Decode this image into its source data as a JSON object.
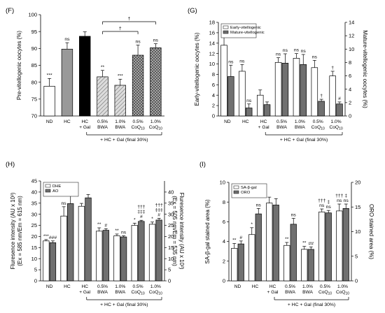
{
  "colors": {
    "white": "#ffffff",
    "gray": "#999999",
    "black": "#000000",
    "dark": "#707070",
    "hatch": "#c8c8c8",
    "ink": "#000000"
  },
  "chart_data": [
    {
      "panel": "(F)",
      "type": "bar",
      "categories": [
        "ND",
        "HC",
        "HC\n+ Gal",
        "0.5%\nBWA",
        "1.0%\nBWA",
        "0.5%\nCoQ10",
        "1.0%\nCoQ10"
      ],
      "ylabel": "Pre-vitellogenic oocytes (%)",
      "ylim": [
        70,
        100
      ],
      "yticks": [
        70,
        75,
        80,
        85,
        90,
        95,
        100
      ],
      "footnote": "+ HC + Gal (final 30%)",
      "series": [
        {
          "values": [
            78.8,
            89.8,
            93.6,
            81.6,
            79.1,
            88.0,
            90.2
          ],
          "errors": [
            2.3,
            1.9,
            1.3,
            1.9,
            1.8,
            3.0,
            1.2
          ],
          "fills": [
            "white",
            "gray",
            "black",
            "hatch",
            "hatch",
            "cross",
            "cross"
          ],
          "annotations": [
            "***",
            "ns",
            "",
            "**",
            "***",
            "ns",
            "ns"
          ]
        }
      ],
      "brackets": [
        {
          "from": 3,
          "to": 5,
          "label": "†"
        },
        {
          "from": 3,
          "to": 6,
          "label": "†"
        }
      ]
    },
    {
      "panel": "(G)",
      "type": "bar",
      "categories": [
        "ND",
        "HC",
        "HC\n+ Gal",
        "0.5%\nBWA",
        "1.0%\nBWA",
        "0.5%\nCoQ10",
        "1.0%\nCoQ10"
      ],
      "ylabel": "Early-vitellogenic oocytes (%)",
      "ylim": [
        0,
        18
      ],
      "yticks": [
        0,
        2,
        4,
        6,
        8,
        10,
        12,
        14,
        16,
        18
      ],
      "y2label": "Mature-vitellogenic oocytes (%)",
      "y2lim": [
        0,
        14
      ],
      "y2ticks": [
        0,
        2,
        4,
        6,
        8,
        10,
        12,
        14
      ],
      "legend": "top-left",
      "footnote": "+ HC + Gal (final 30%)",
      "series": [
        {
          "name": "Early-vitellogenic",
          "axis": "left",
          "fill": "white",
          "values": [
            13.6,
            8.6,
            4.0,
            10.3,
            11.1,
            9.3,
            7.7
          ],
          "errors": [
            1.7,
            1.3,
            1.0,
            0.9,
            0.9,
            1.4,
            0.9
          ],
          "annotations": [
            "**",
            "ns",
            "",
            "ns",
            "ns",
            "ns",
            "†"
          ]
        },
        {
          "name": "Mature-vitellogenic",
          "axis": "right",
          "fill": "dark",
          "values": [
            5.9,
            1.2,
            1.7,
            7.9,
            7.7,
            2.2,
            1.8
          ],
          "errors": [
            1.7,
            0.6,
            0.4,
            1.4,
            1.5,
            0.3,
            0.3
          ],
          "annotations": [
            "ns",
            "ns",
            "",
            "ns",
            "ns",
            "†",
            "#"
          ]
        }
      ]
    },
    {
      "panel": "(H)",
      "type": "bar",
      "categories": [
        "ND",
        "HC",
        "HC\n+ Gal",
        "0.5%\nBWA",
        "1.0%\nBWA",
        "0.5%\nCoQ10",
        "1.0%\nCoQ10"
      ],
      "ylabel": "Fluresence intensity (AU x 10³)\n(Ex = 585 nm/Em = 615 nm)",
      "ylim": [
        0,
        45
      ],
      "yticks": [
        0,
        5,
        10,
        15,
        20,
        25,
        30,
        35,
        40,
        45
      ],
      "y2label": "Fluresence intensity (AU x 10³)\n(Ex = 505 nm/Em = 535 nm)",
      "y2lim": [
        0,
        45
      ],
      "y2ticks": [
        0,
        5,
        10,
        15,
        20,
        25,
        30,
        35,
        40
      ],
      "legend": "top-left",
      "footnote": "+ HC + Gal (final 30%)",
      "series": [
        {
          "name": "DHE",
          "axis": "left",
          "fill": "white",
          "values": [
            18.0,
            29.2,
            33.6,
            22.4,
            20.3,
            25.0,
            25.5
          ],
          "errors": [
            0.6,
            4.2,
            1.3,
            1.5,
            0.8,
            1.0,
            1.0
          ],
          "annotations": [
            "***",
            "ns",
            "",
            "**",
            "**",
            "*",
            "*"
          ]
        },
        {
          "name": "AO",
          "axis": "right",
          "fill": "dark",
          "values": [
            17.2,
            34.8,
            37.4,
            22.8,
            19.8,
            26.8,
            27.4
          ],
          "errors": [
            0.8,
            4.0,
            1.5,
            0.7,
            0.5,
            0.5,
            0.8
          ],
          "annotations": [
            "###",
            "ns",
            "",
            "#",
            "ns",
            "#",
            "#"
          ],
          "daggers": [
            "",
            "",
            "",
            "",
            "",
            "†††\n‡‡‡",
            "†††\n‡‡‡"
          ]
        }
      ]
    },
    {
      "panel": "(I)",
      "type": "bar",
      "categories": [
        "ND",
        "HC",
        "HC\n+ Gal",
        "0.5%\nBWA",
        "1.0%\nBWA",
        "0.5%\nCoQ10",
        "1.0%\nCoQ10"
      ],
      "ylabel": "SA-β-gal stained area (%)",
      "ylim": [
        0,
        10
      ],
      "yticks": [
        0,
        2,
        4,
        6,
        8,
        10
      ],
      "y2label": "ORO stained area (%)",
      "y2lim": [
        0,
        20
      ],
      "y2ticks": [
        0,
        5,
        10,
        15,
        20
      ],
      "legend": "top-left",
      "footnote": "+ HC + Gal (final 30%)",
      "series": [
        {
          "name": "SA-β-gal",
          "axis": "left",
          "fill": "white",
          "values": [
            3.3,
            4.7,
            7.9,
            3.6,
            3.2,
            7.0,
            7.1
          ],
          "errors": [
            0.5,
            0.7,
            0.6,
            0.3,
            0.3,
            0.3,
            0.7
          ],
          "annotations": [
            "**",
            "*",
            "",
            "**",
            "**",
            "ns",
            "ns"
          ],
          "daggers": [
            "",
            "",
            "",
            "",
            "",
            "†††",
            "†††"
          ]
        },
        {
          "name": "ORO",
          "axis": "right",
          "fill": "dark",
          "values": [
            7.5,
            13.6,
            15.4,
            11.5,
            6.4,
            13.8,
            14.7
          ],
          "errors": [
            0.6,
            1.1,
            1.3,
            1.2,
            0.5,
            0.5,
            0.9
          ],
          "annotations": [
            "#",
            "ns",
            "",
            "ns",
            "##",
            "ns",
            "ns"
          ],
          "daggers": [
            "",
            "",
            "",
            "",
            "",
            "‡",
            "‡"
          ]
        }
      ]
    }
  ]
}
